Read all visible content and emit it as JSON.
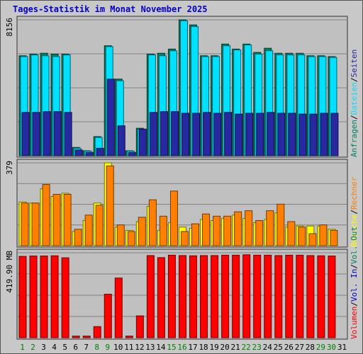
{
  "chart_data": {
    "type": "bar",
    "title": "Tages-Statistik im Monat November 2025",
    "categories": [
      "1",
      "2",
      "3",
      "4",
      "5",
      "6",
      "7",
      "8",
      "9",
      "10",
      "11",
      "12",
      "13",
      "14",
      "15",
      "16",
      "17",
      "18",
      "19",
      "20",
      "21",
      "22",
      "23",
      "24",
      "25",
      "26",
      "27",
      "28",
      "29",
      "30",
      "31"
    ],
    "weekend_days": [
      "1",
      "2",
      "8",
      "9",
      "15",
      "16",
      "22",
      "23",
      "29",
      "30"
    ],
    "colors": {
      "weekday_label": "#000000",
      "weekend_label": "#008000",
      "Anfragen": "#008060",
      "Dateien": "#00e0ff",
      "Seiten": "#2828a0",
      "Besuche": "#ffff00",
      "Rechner": "#ff8000",
      "Volumen": "#ff0000"
    },
    "panels": [
      {
        "ylabel_max": "8156",
        "ymax": 8156,
        "series": [
          {
            "name": "Anfragen",
            "values": [
              6000,
              6100,
              6150,
              6100,
              6100,
              500,
              300,
              1150,
              6600,
              4600,
              300,
              1650,
              6100,
              6150,
              6400,
              8156,
              7850,
              6000,
              6000,
              6700,
              6400,
              6700,
              6200,
              6450,
              6150,
              6150,
              6150,
              6000,
              6000,
              5950,
              null
            ]
          },
          {
            "name": "Dateien",
            "values": [
              5950,
              6050,
              6000,
              5950,
              6050,
              450,
              280,
              1100,
              6550,
              4500,
              280,
              1600,
              6050,
              6000,
              6300,
              8100,
              7750,
              5950,
              5950,
              6600,
              6350,
              6650,
              6100,
              6300,
              6050,
              6050,
              6050,
              5950,
              5950,
              5900,
              null
            ]
          },
          {
            "name": "Seiten",
            "values": [
              2600,
              2600,
              2650,
              2650,
              2600,
              350,
              200,
              450,
              4600,
              1800,
              200,
              1600,
              2600,
              2650,
              2650,
              2550,
              2550,
              2600,
              2550,
              2600,
              2500,
              2550,
              2550,
              2600,
              2550,
              2550,
              2500,
              2500,
              2550,
              2550,
              null
            ]
          }
        ],
        "legend": [
          "Anfragen",
          "Dateien",
          "Seiten"
        ]
      },
      {
        "ylabel_max": "379",
        "ymax": 379,
        "series": [
          {
            "name": "Besuche",
            "values": [
              200,
              195,
              260,
              225,
              240,
              65,
              115,
              195,
              379,
              85,
              70,
              110,
              180,
              70,
              105,
              85,
              80,
              120,
              115,
              125,
              140,
              125,
              105,
              120,
              150,
              85,
              90,
              90,
              90,
              75,
              null
            ]
          },
          {
            "name": "Rechner",
            "values": [
              195,
              195,
              280,
              235,
              235,
              75,
              140,
              185,
              365,
              95,
              65,
              130,
              210,
              135,
              250,
              65,
              100,
              145,
              135,
              135,
              155,
              160,
              115,
              160,
              190,
              110,
              85,
              55,
              95,
              70,
              null
            ]
          }
        ],
        "legend": [
          "Besuche",
          "Rechner"
        ]
      },
      {
        "ylabel_max": "419.90 MB",
        "ymax": 419.9,
        "series": [
          {
            "name": "Volumen",
            "values": [
              402,
              404,
              404,
              405,
              395,
              8,
              8,
              55,
              215,
              295,
              8,
              108,
              406,
              396,
              408,
              406,
              405,
              406,
              406,
              408,
              408,
              410,
              408,
              408,
              406,
              408,
              408,
              406,
              405,
              404,
              null
            ]
          }
        ],
        "legend": [
          "Volumen",
          "Vol. In",
          "Vol. Out"
        ]
      }
    ]
  }
}
